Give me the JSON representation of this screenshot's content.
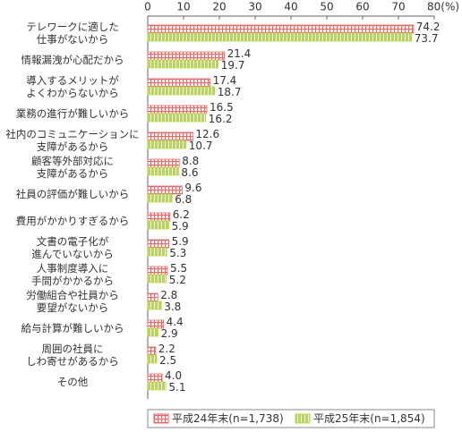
{
  "chart_data": {
    "type": "bar",
    "orientation": "horizontal",
    "categories": [
      "テレワークに適した\n仕事がないから",
      "情報漏洩が心配だから",
      "導入するメリットが\nよくわからないから",
      "業務の進行が難しいから",
      "社内のコミュニケーションに\n支障があるから",
      "顧客等外部対応に\n支障があるから",
      "社員の評価が難しいから",
      "費用がかかりすぎるから",
      "文書の電子化が\n進んでいないから",
      "人事制度導入に\n手間がかかるから",
      "労働組合や社員から\n要望がないから",
      "給与計算が難しいから",
      "周囲の社員に\nしわ寄せがあるから",
      "その他"
    ],
    "series": [
      {
        "name": "平成24年末(n=1,738)",
        "color": "#e06a6a",
        "pattern": "check",
        "values": [
          74.2,
          21.4,
          17.4,
          16.5,
          12.6,
          8.8,
          9.6,
          6.2,
          5.9,
          5.5,
          2.8,
          4.4,
          2.2,
          4.0
        ],
        "value_labels": [
          "74.2",
          "21.4",
          "17.4",
          "16.5",
          "12.6",
          "8.8",
          "9.6",
          "6.2",
          "5.9",
          "5.5",
          "2.8",
          "4.4",
          "2.2",
          "4.0"
        ]
      },
      {
        "name": "平成25年末(n=1,854)",
        "color": "#b8d848",
        "pattern": "stripe",
        "values": [
          73.7,
          19.7,
          18.7,
          16.2,
          10.7,
          8.6,
          6.8,
          5.9,
          5.3,
          5.2,
          3.8,
          2.9,
          2.5,
          5.1
        ],
        "value_labels": [
          "73.7",
          "19.7",
          "18.7",
          "16.2",
          "10.7",
          "8.6",
          "6.8",
          "5.9",
          "5.3",
          "5.2",
          "3.8",
          "2.9",
          "2.5",
          "5.1"
        ]
      }
    ],
    "xlim": [
      0,
      80
    ],
    "xticks": [
      0,
      10,
      20,
      30,
      40,
      50,
      60,
      70,
      {
        "value": 80,
        "label": "80(%)"
      }
    ],
    "legend": "bottom"
  }
}
